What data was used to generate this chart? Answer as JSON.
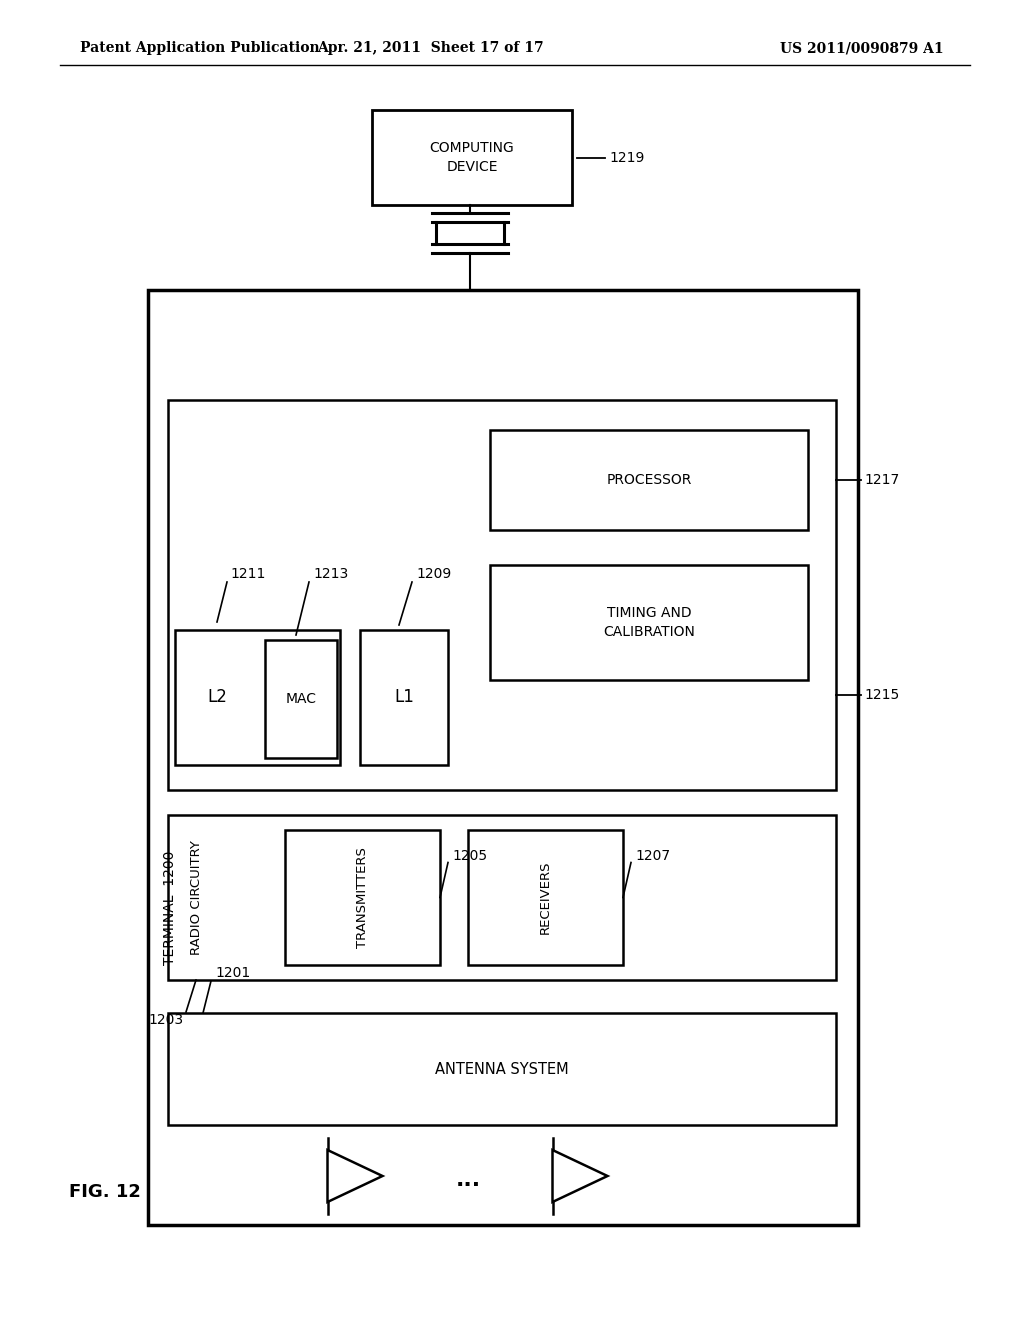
{
  "bg_color": "#ffffff",
  "header_left": "Patent Application Publication",
  "header_mid": "Apr. 21, 2011  Sheet 17 of 17",
  "header_right": "US 2011/0090879 A1",
  "fig_label": "FIG. 12"
}
